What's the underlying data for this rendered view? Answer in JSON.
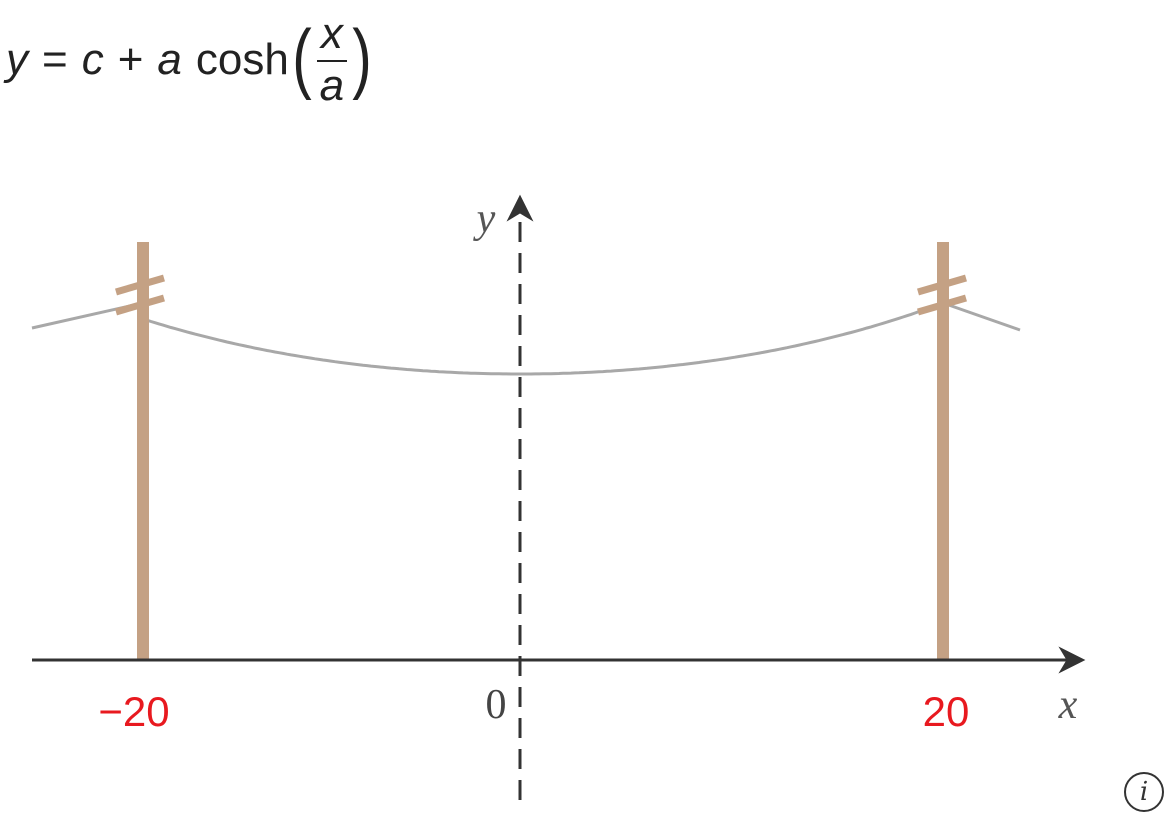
{
  "equation": {
    "lhs": "y",
    "equals": "=",
    "c": "c",
    "plus": "+",
    "a": "a",
    "func": "cosh",
    "frac_num": "x",
    "frac_den": "a"
  },
  "axes": {
    "x_label": "x",
    "y_label": "y",
    "origin_label": "0"
  },
  "ticks": {
    "left": "−20",
    "right": "20"
  },
  "colors": {
    "pole": "#c4a184",
    "tick_label": "#e8191f",
    "cable": "#a8a8a8",
    "axis": "#333333"
  },
  "info_icon": "info-icon"
}
